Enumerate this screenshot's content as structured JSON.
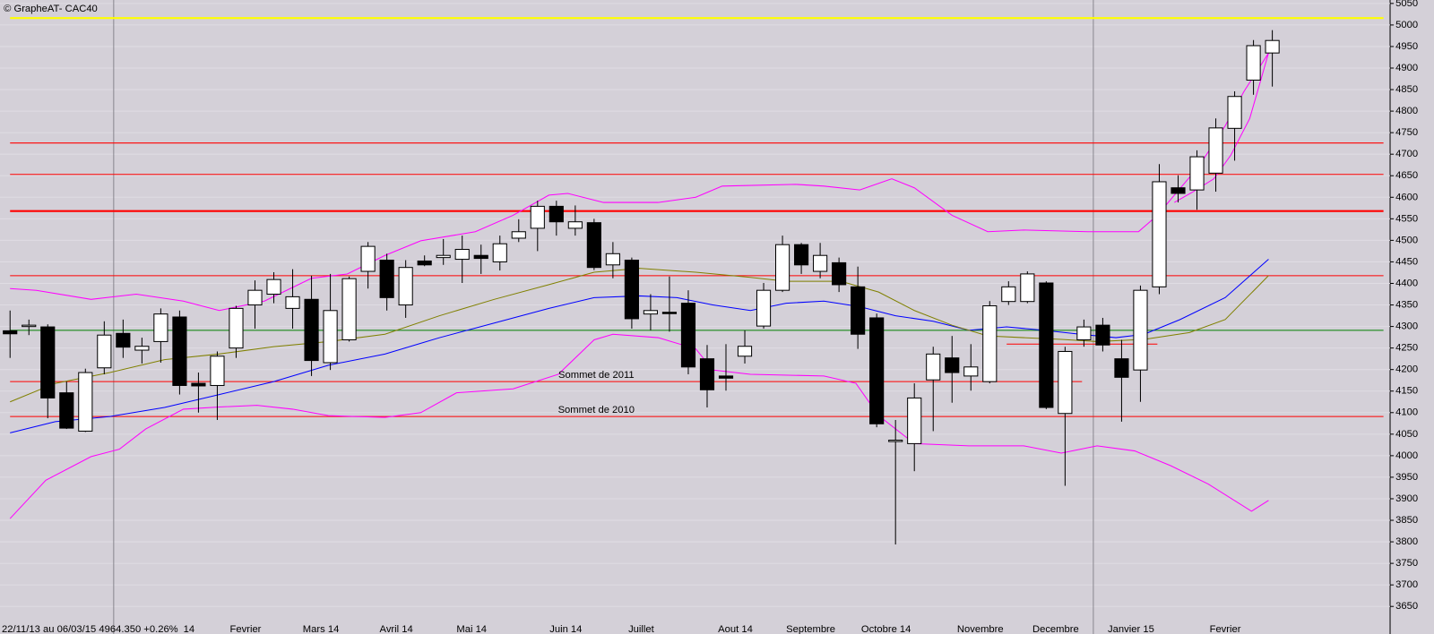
{
  "chart_data": {
    "type": "candlestick",
    "title": "© GrapheAT- CAC40",
    "info": "22/11/13 au 06/03/15  4964.350  +0.26%",
    "categories": [
      null,
      null,
      null,
      null,
      null,
      null,
      null,
      null,
      null,
      "14",
      null,
      null,
      "Fevrier",
      null,
      null,
      null,
      "Mars 14",
      null,
      null,
      null,
      "Avril 14",
      null,
      null,
      null,
      "Mai 14",
      null,
      null,
      null,
      null,
      "Juin 14",
      null,
      null,
      null,
      "Juillet",
      null,
      null,
      null,
      null,
      "Aout 14",
      null,
      null,
      null,
      "Septembre",
      null,
      null,
      null,
      "Octobre 14",
      null,
      null,
      null,
      null,
      "Novembre",
      null,
      null,
      null,
      "Decembre",
      null,
      null,
      null,
      "Janvier 15",
      null,
      null,
      null,
      null,
      "Fevrier",
      null,
      null,
      null
    ],
    "open": [
      4290,
      4300,
      4299,
      4146,
      4057,
      4204,
      4284,
      4245,
      4265,
      4322,
      4168,
      4163,
      4250,
      4350,
      4375,
      4342,
      4363,
      4216,
      4269,
      4428,
      4454,
      4350,
      4452,
      4460,
      4456,
      4465,
      4450,
      4505,
      4528,
      4579,
      4528,
      4541,
      4443,
      4454,
      4329,
      4333,
      4354,
      4225,
      4185,
      4231,
      4301,
      4384,
      4490,
      4428,
      4448,
      4392,
      4320,
      4034,
      4028,
      4176,
      4227,
      4185,
      4172,
      4358,
      4358,
      4401,
      4098,
      4269,
      4303,
      4225,
      4199,
      4392,
      4622,
      4617,
      4656,
      4760,
      4872,
      4935
    ],
    "high": [
      4337,
      4316,
      4305,
      4172,
      4202,
      4312,
      4316,
      4274,
      4342,
      4337,
      4193,
      4242,
      4348,
      4407,
      4426,
      4433,
      4418,
      4422,
      4416,
      4496,
      4469,
      4454,
      4465,
      4503,
      4511,
      4490,
      4511,
      4549,
      4592,
      4592,
      4581,
      4550,
      4496,
      4460,
      4375,
      4416,
      4384,
      4257,
      4259,
      4291,
      4401,
      4511,
      4494,
      4494,
      4460,
      4439,
      4330,
      4083,
      4168,
      4253,
      4278,
      4259,
      4359,
      4405,
      4428,
      4405,
      4253,
      4316,
      4320,
      4269,
      4395,
      4677,
      4651,
      4709,
      4783,
      4846,
      4965,
      4988
    ],
    "low": [
      4227,
      4280,
      4087,
      4062,
      4055,
      4189,
      4227,
      4214,
      4216,
      4142,
      4100,
      4083,
      4227,
      4295,
      4354,
      4295,
      4185,
      4199,
      4265,
      4388,
      4337,
      4320,
      4440,
      4443,
      4401,
      4422,
      4430,
      4496,
      4475,
      4511,
      4511,
      4431,
      4412,
      4295,
      4291,
      4288,
      4189,
      4112,
      4151,
      4214,
      4295,
      4380,
      4422,
      4412,
      4380,
      4248,
      4066,
      3794,
      3964,
      4057,
      4123,
      4151,
      4168,
      4350,
      4354,
      4108,
      3930,
      4253,
      4242,
      4079,
      4125,
      4375,
      4588,
      4571,
      4613,
      4685,
      4838,
      4857
    ],
    "close": [
      4283,
      4303,
      4134,
      4064,
      4193,
      4280,
      4252,
      4254,
      4329,
      4163,
      4162,
      4231,
      4342,
      4384,
      4409,
      4369,
      4221,
      4337,
      4411,
      4486,
      4367,
      4437,
      4443,
      4465,
      4479,
      4458,
      4492,
      4520,
      4579,
      4543,
      4543,
      4437,
      4469,
      4318,
      4337,
      4330,
      4206,
      4153,
      4180,
      4254,
      4384,
      4490,
      4443,
      4465,
      4397,
      4282,
      4074,
      4036,
      4134,
      4236,
      4193,
      4206,
      4348,
      4392,
      4422,
      4112,
      4242,
      4299,
      4257,
      4182,
      4384,
      4636,
      4609,
      4694,
      4761,
      4834,
      4952,
      4964
    ],
    "up_color": "#ffffff",
    "down_color": "#000000",
    "lines": [
      {
        "color": "#ff00ff",
        "x": [
          0,
          1.4,
          4.3,
          6.7,
          9.2,
          11.1,
          13.5,
          16,
          17.9,
          19.9,
          21.8,
          24.7,
          26.7,
          28.6,
          29.6,
          31.5,
          34.4,
          36.4,
          37.8,
          41.7,
          43.2,
          45.1,
          46.8,
          48,
          50,
          51.9,
          53.8,
          57.2,
          59.9,
          60.9,
          61.8,
          63.1,
          64.5,
          65.5,
          66.8
        ],
        "values": [
          4388,
          4384,
          4363,
          4375,
          4359,
          4337,
          4359,
          4412,
          4422,
          4465,
          4499,
          4520,
          4558,
          4605,
          4609,
          4588,
          4588,
          4600,
          4626,
          4630,
          4626,
          4617,
          4643,
          4622,
          4558,
          4520,
          4524,
          4520,
          4520,
          4558,
          4605,
          4672,
          4766,
          4846,
          4935
        ]
      },
      {
        "color": "#ff00ff",
        "x": [
          0,
          1.9,
          4.3,
          5.8,
          7.2,
          9.2,
          11.1,
          13.1,
          15,
          16.9,
          19.9,
          21.8,
          23.7,
          26.7,
          29.1,
          31,
          32,
          34.4,
          36.4,
          37.3,
          39.3,
          43.2,
          44.9,
          46.1,
          48,
          50.9,
          53.8,
          55.8,
          57.7,
          59.7,
          61.6,
          63.6,
          65.9,
          66.8
        ],
        "values": [
          3854,
          3943,
          3998,
          4015,
          4062,
          4108,
          4113,
          4117,
          4108,
          4093,
          4089,
          4100,
          4146,
          4155,
          4189,
          4269,
          4282,
          4274,
          4248,
          4199,
          4189,
          4185,
          4168,
          4093,
          4028,
          4023,
          4023,
          4006,
          4023,
          4011,
          3977,
          3934,
          3871,
          3896
        ]
      },
      {
        "color": "#0000ff",
        "x": [
          0,
          2.4,
          5.3,
          8.2,
          11.1,
          14,
          16.9,
          19.9,
          22.8,
          25.7,
          28.6,
          31,
          33.4,
          35.4,
          37.3,
          39.3,
          41.2,
          43.2,
          45.1,
          47,
          49,
          50.9,
          52.9,
          54.9,
          56.8,
          58.7,
          60.2,
          62.1,
          64.5,
          66.8
        ],
        "values": [
          4053,
          4079,
          4091,
          4112,
          4142,
          4172,
          4210,
          4236,
          4274,
          4308,
          4342,
          4367,
          4371,
          4367,
          4350,
          4337,
          4354,
          4359,
          4346,
          4325,
          4312,
          4291,
          4299,
          4291,
          4282,
          4274,
          4282,
          4316,
          4367,
          4456
        ]
      },
      {
        "color": "#808000",
        "x": [
          0,
          2.4,
          5.3,
          8.2,
          11.1,
          14,
          16.9,
          19.9,
          22.8,
          25.7,
          28.6,
          31,
          33.4,
          36.4,
          39.3,
          41.2,
          44.1,
          46.1,
          48,
          50,
          51.9,
          53.8,
          55.8,
          57.7,
          60.2,
          62.6,
          64.5,
          66.8
        ],
        "values": [
          4125,
          4168,
          4193,
          4223,
          4236,
          4253,
          4265,
          4282,
          4325,
          4363,
          4397,
          4426,
          4435,
          4426,
          4414,
          4405,
          4405,
          4380,
          4337,
          4303,
          4278,
          4274,
          4270,
          4265,
          4270,
          4286,
          4316,
          4418
        ]
      },
      {
        "color": "#ff00ff",
        "x": [
          61.8,
          62.8,
          63.9,
          64.8,
          65.8,
          66.8
        ],
        "values": [
          4588,
          4613,
          4643,
          4698,
          4783,
          4935
        ]
      }
    ],
    "hlines": [
      {
        "value": 5016,
        "color": "#ffff00",
        "x": [
          0,
          72.9
        ]
      },
      {
        "value": 4726,
        "color": "#ff0000",
        "x": [
          0,
          72.9
        ]
      },
      {
        "value": 4653,
        "color": "#ff0000",
        "x": [
          0,
          72.9
        ]
      },
      {
        "value": 4568,
        "color": "#ff0000",
        "x": [
          0,
          72.9
        ]
      },
      {
        "value": 4418,
        "color": "#ff0000",
        "x": [
          0,
          72.9
        ]
      },
      {
        "value": 4291,
        "color": "#008000",
        "x": [
          0,
          72.9
        ]
      },
      {
        "value": 4259,
        "color": "#ff0000",
        "x": [
          52.9,
          60.9
        ]
      },
      {
        "value": 4172,
        "color": "#ff0000",
        "x": [
          0,
          56.9
        ],
        "label": "Sommet de 2011"
      },
      {
        "value": 4091,
        "color": "#ff0000",
        "x": [
          0,
          72.9
        ],
        "label": "Sommet de 2010"
      }
    ],
    "vlines": [
      5.5,
      57.5
    ],
    "xlim": [
      -0.534,
      73.252
    ],
    "ylim": [
      3586,
      5058
    ],
    "yticks": [
      3650,
      3700,
      3750,
      3800,
      3850,
      3900,
      3950,
      4000,
      4050,
      4100,
      4150,
      4200,
      4250,
      4300,
      4350,
      4400,
      4450,
      4500,
      4550,
      4600,
      4650,
      4700,
      4750,
      4800,
      4850,
      4900,
      4950,
      5000,
      5050
    ],
    "grid": true
  }
}
